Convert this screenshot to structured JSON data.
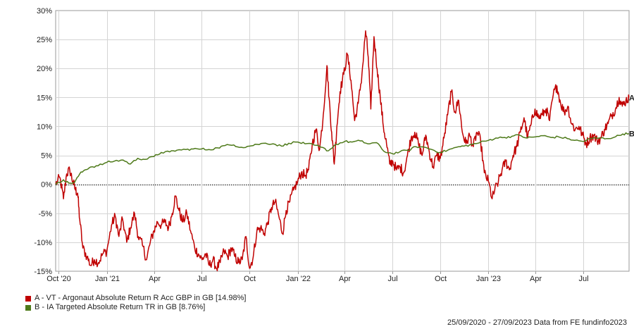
{
  "chart_data": {
    "type": "line",
    "x_start": "2020-09-25",
    "x_end": "2023-09-27",
    "xticks": [
      {
        "date": "2020-10-01",
        "label": "Oct '20"
      },
      {
        "date": "2021-01-01",
        "label": "Jan '21"
      },
      {
        "date": "2021-04-01",
        "label": "Apr"
      },
      {
        "date": "2021-07-01",
        "label": "Jul"
      },
      {
        "date": "2021-10-01",
        "label": "Oct"
      },
      {
        "date": "2022-01-01",
        "label": "Jan '22"
      },
      {
        "date": "2022-04-01",
        "label": "Apr"
      },
      {
        "date": "2022-07-01",
        "label": "Jul"
      },
      {
        "date": "2022-10-01",
        "label": "Oct"
      },
      {
        "date": "2023-01-01",
        "label": "Jan '23"
      },
      {
        "date": "2023-04-01",
        "label": "Apr"
      },
      {
        "date": "2023-07-01",
        "label": "Jul"
      }
    ],
    "ylim": [
      -15,
      30
    ],
    "yticks": [
      -15,
      -10,
      -5,
      0,
      5,
      10,
      15,
      20,
      25,
      30
    ],
    "ytick_labels": [
      "-15%",
      "-10%",
      "-5%",
      "0%",
      "5%",
      "10%",
      "15%",
      "20%",
      "25%",
      "30%"
    ],
    "grid": true,
    "legend_position": "bottom-left",
    "series": [
      {
        "name": "A - VT - Argonaut Absolute Return R Acc GBP in GB [14.98%]",
        "end_label": "A",
        "color": "#c00000",
        "points": [
          [
            "2020-09-25",
            0
          ],
          [
            "2020-10-03",
            1.2
          ],
          [
            "2020-10-10",
            -2.5
          ],
          [
            "2020-10-16",
            1.8
          ],
          [
            "2020-10-22",
            2.5
          ],
          [
            "2020-10-28",
            0.5
          ],
          [
            "2020-11-02",
            -1.0
          ],
          [
            "2020-11-06",
            -1.5
          ],
          [
            "2020-11-10",
            -6.0
          ],
          [
            "2020-11-16",
            -11.0
          ],
          [
            "2020-11-24",
            -12.5
          ],
          [
            "2020-12-01",
            -14.0
          ],
          [
            "2020-12-08",
            -13.0
          ],
          [
            "2020-12-16",
            -13.5
          ],
          [
            "2020-12-24",
            -12.0
          ],
          [
            "2021-01-01",
            -11.5
          ],
          [
            "2021-01-10",
            -7.0
          ],
          [
            "2021-01-17",
            -5.5
          ],
          [
            "2021-01-24",
            -9.0
          ],
          [
            "2021-01-31",
            -6.0
          ],
          [
            "2021-02-08",
            -10.0
          ],
          [
            "2021-02-15",
            -7.5
          ],
          [
            "2021-02-23",
            -5.0
          ],
          [
            "2021-03-02",
            -9.0
          ],
          [
            "2021-03-10",
            -10.5
          ],
          [
            "2021-03-18",
            -13.0
          ],
          [
            "2021-03-25",
            -10.0
          ],
          [
            "2021-04-01",
            -8.0
          ],
          [
            "2021-04-08",
            -6.5
          ],
          [
            "2021-04-15",
            -7.0
          ],
          [
            "2021-04-22",
            -6.5
          ],
          [
            "2021-04-29",
            -7.5
          ],
          [
            "2021-05-06",
            -5.0
          ],
          [
            "2021-05-12",
            -2.0
          ],
          [
            "2021-05-19",
            -4.5
          ],
          [
            "2021-05-26",
            -6.5
          ],
          [
            "2021-06-03",
            -5.0
          ],
          [
            "2021-06-10",
            -8.0
          ],
          [
            "2021-06-18",
            -11.0
          ],
          [
            "2021-06-25",
            -12.0
          ],
          [
            "2021-07-02",
            -13.0
          ],
          [
            "2021-07-09",
            -12.0
          ],
          [
            "2021-07-16",
            -14.0
          ],
          [
            "2021-07-23",
            -13.0
          ],
          [
            "2021-07-30",
            -14.5
          ],
          [
            "2021-08-06",
            -13.5
          ],
          [
            "2021-08-13",
            -11.5
          ],
          [
            "2021-08-20",
            -12.5
          ],
          [
            "2021-08-27",
            -11.0
          ],
          [
            "2021-09-03",
            -12.5
          ],
          [
            "2021-09-10",
            -13.5
          ],
          [
            "2021-09-17",
            -13.0
          ],
          [
            "2021-09-24",
            -9.0
          ],
          [
            "2021-10-01",
            -14.5
          ],
          [
            "2021-10-08",
            -12.5
          ],
          [
            "2021-10-15",
            -8.0
          ],
          [
            "2021-10-22",
            -7.5
          ],
          [
            "2021-10-29",
            -8.5
          ],
          [
            "2021-11-05",
            -6.5
          ],
          [
            "2021-11-12",
            -4.0
          ],
          [
            "2021-11-19",
            -3.0
          ],
          [
            "2021-11-26",
            -5.5
          ],
          [
            "2021-12-03",
            -8.5
          ],
          [
            "2021-12-10",
            -4.5
          ],
          [
            "2021-12-17",
            -3.0
          ],
          [
            "2021-12-24",
            -1.0
          ],
          [
            "2022-01-01",
            0.5
          ],
          [
            "2022-01-08",
            2.0
          ],
          [
            "2022-01-15",
            1.5
          ],
          [
            "2022-01-22",
            2.5
          ],
          [
            "2022-01-29",
            7.0
          ],
          [
            "2022-02-05",
            9.5
          ],
          [
            "2022-02-12",
            6.0
          ],
          [
            "2022-02-19",
            12.0
          ],
          [
            "2022-02-26",
            20.5
          ],
          [
            "2022-03-02",
            15.0
          ],
          [
            "2022-03-07",
            9.0
          ],
          [
            "2022-03-12",
            3.5
          ],
          [
            "2022-03-17",
            10.0
          ],
          [
            "2022-03-23",
            16.0
          ],
          [
            "2022-03-30",
            19.0
          ],
          [
            "2022-04-06",
            22.5
          ],
          [
            "2022-04-13",
            18.0
          ],
          [
            "2022-04-20",
            11.0
          ],
          [
            "2022-04-27",
            14.0
          ],
          [
            "2022-05-04",
            19.0
          ],
          [
            "2022-05-11",
            26.5
          ],
          [
            "2022-05-16",
            22.0
          ],
          [
            "2022-05-21",
            13.0
          ],
          [
            "2022-05-27",
            25.5
          ],
          [
            "2022-06-02",
            20.0
          ],
          [
            "2022-06-08",
            15.0
          ],
          [
            "2022-06-14",
            10.0
          ],
          [
            "2022-06-20",
            7.0
          ],
          [
            "2022-06-26",
            3.5
          ],
          [
            "2022-07-02",
            4.0
          ],
          [
            "2022-07-09",
            2.5
          ],
          [
            "2022-07-16",
            3.0
          ],
          [
            "2022-07-23",
            2.0
          ],
          [
            "2022-07-30",
            5.0
          ],
          [
            "2022-08-06",
            8.0
          ],
          [
            "2022-08-13",
            9.0
          ],
          [
            "2022-08-20",
            7.0
          ],
          [
            "2022-08-27",
            5.0
          ],
          [
            "2022-09-03",
            8.5
          ],
          [
            "2022-09-10",
            5.5
          ],
          [
            "2022-09-17",
            3.0
          ],
          [
            "2022-09-24",
            5.0
          ],
          [
            "2022-10-01",
            4.5
          ],
          [
            "2022-10-08",
            8.0
          ],
          [
            "2022-10-15",
            12.0
          ],
          [
            "2022-10-22",
            16.0
          ],
          [
            "2022-10-29",
            12.5
          ],
          [
            "2022-11-05",
            14.5
          ],
          [
            "2022-11-12",
            9.0
          ],
          [
            "2022-11-19",
            7.0
          ],
          [
            "2022-11-26",
            8.5
          ],
          [
            "2022-12-03",
            6.5
          ],
          [
            "2022-12-10",
            9.0
          ],
          [
            "2022-12-17",
            7.5
          ],
          [
            "2022-12-24",
            2.0
          ],
          [
            "2023-01-01",
            0.5
          ],
          [
            "2023-01-08",
            -2.5
          ],
          [
            "2023-01-13",
            -1.0
          ],
          [
            "2023-01-20",
            0.5
          ],
          [
            "2023-01-27",
            2.5
          ],
          [
            "2023-02-03",
            4.0
          ],
          [
            "2023-02-10",
            2.5
          ],
          [
            "2023-02-17",
            5.0
          ],
          [
            "2023-02-24",
            6.5
          ],
          [
            "2023-03-03",
            9.0
          ],
          [
            "2023-03-10",
            11.5
          ],
          [
            "2023-03-17",
            8.0
          ],
          [
            "2023-03-24",
            10.5
          ],
          [
            "2023-03-31",
            13.0
          ],
          [
            "2023-04-07",
            11.5
          ],
          [
            "2023-04-14",
            12.0
          ],
          [
            "2023-04-21",
            13.0
          ],
          [
            "2023-04-28",
            11.0
          ],
          [
            "2023-05-05",
            15.5
          ],
          [
            "2023-05-12",
            17.0
          ],
          [
            "2023-05-19",
            14.0
          ],
          [
            "2023-05-26",
            12.5
          ],
          [
            "2023-06-02",
            13.5
          ],
          [
            "2023-06-09",
            10.5
          ],
          [
            "2023-06-16",
            9.5
          ],
          [
            "2023-06-23",
            10.0
          ],
          [
            "2023-06-30",
            8.5
          ],
          [
            "2023-07-07",
            7.0
          ],
          [
            "2023-07-14",
            8.0
          ],
          [
            "2023-07-21",
            8.5
          ],
          [
            "2023-07-28",
            7.5
          ],
          [
            "2023-08-04",
            8.0
          ],
          [
            "2023-08-11",
            9.5
          ],
          [
            "2023-08-18",
            10.5
          ],
          [
            "2023-08-25",
            12.0
          ],
          [
            "2023-09-01",
            13.0
          ],
          [
            "2023-09-08",
            15.0
          ],
          [
            "2023-09-14",
            13.5
          ],
          [
            "2023-09-21",
            14.5
          ],
          [
            "2023-09-27",
            14.98
          ]
        ]
      },
      {
        "name": "B - IA Targeted Absolute Return TR in GB [8.76%]",
        "end_label": "B",
        "color": "#4e7a1a",
        "points": [
          [
            "2020-09-25",
            0
          ],
          [
            "2020-10-10",
            0.8
          ],
          [
            "2020-10-20",
            0.2
          ],
          [
            "2020-10-31",
            0.3
          ],
          [
            "2020-11-10",
            1.8
          ],
          [
            "2020-11-20",
            2.5
          ],
          [
            "2020-12-01",
            3.0
          ],
          [
            "2020-12-15",
            3.2
          ],
          [
            "2021-01-01",
            3.8
          ],
          [
            "2021-01-15",
            4.0
          ],
          [
            "2021-02-01",
            4.2
          ],
          [
            "2021-02-15",
            3.5
          ],
          [
            "2021-03-01",
            4.5
          ],
          [
            "2021-03-15",
            4.3
          ],
          [
            "2021-04-01",
            4.8
          ],
          [
            "2021-04-15",
            5.5
          ],
          [
            "2021-05-01",
            5.6
          ],
          [
            "2021-05-15",
            5.9
          ],
          [
            "2021-06-01",
            6.0
          ],
          [
            "2021-06-15",
            6.1
          ],
          [
            "2021-07-01",
            6.1
          ],
          [
            "2021-07-15",
            6.0
          ],
          [
            "2021-08-01",
            6.3
          ],
          [
            "2021-08-15",
            6.7
          ],
          [
            "2021-09-01",
            6.8
          ],
          [
            "2021-09-15",
            6.4
          ],
          [
            "2021-10-01",
            6.6
          ],
          [
            "2021-10-15",
            6.9
          ],
          [
            "2021-11-01",
            7.1
          ],
          [
            "2021-11-15",
            7.0
          ],
          [
            "2021-12-01",
            6.6
          ],
          [
            "2021-12-15",
            7.1
          ],
          [
            "2022-01-01",
            7.3
          ],
          [
            "2022-01-15",
            7.0
          ],
          [
            "2022-02-01",
            6.8
          ],
          [
            "2022-02-15",
            6.4
          ],
          [
            "2022-03-01",
            5.8
          ],
          [
            "2022-03-15",
            6.9
          ],
          [
            "2022-04-01",
            7.4
          ],
          [
            "2022-04-15",
            7.3
          ],
          [
            "2022-05-01",
            7.5
          ],
          [
            "2022-05-15",
            7.0
          ],
          [
            "2022-06-01",
            7.2
          ],
          [
            "2022-06-15",
            5.7
          ],
          [
            "2022-07-01",
            5.3
          ],
          [
            "2022-07-15",
            5.6
          ],
          [
            "2022-08-01",
            5.9
          ],
          [
            "2022-08-15",
            6.5
          ],
          [
            "2022-09-01",
            6.4
          ],
          [
            "2022-09-15",
            6.0
          ],
          [
            "2022-10-01",
            5.5
          ],
          [
            "2022-10-15",
            5.9
          ],
          [
            "2022-11-01",
            6.4
          ],
          [
            "2022-11-15",
            6.6
          ],
          [
            "2022-12-01",
            6.9
          ],
          [
            "2022-12-15",
            7.2
          ],
          [
            "2023-01-01",
            7.6
          ],
          [
            "2023-01-15",
            8.0
          ],
          [
            "2023-02-01",
            8.1
          ],
          [
            "2023-02-15",
            8.3
          ],
          [
            "2023-03-01",
            8.5
          ],
          [
            "2023-03-15",
            8.0
          ],
          [
            "2023-04-01",
            8.2
          ],
          [
            "2023-04-15",
            8.4
          ],
          [
            "2023-05-01",
            8.1
          ],
          [
            "2023-05-15",
            8.2
          ],
          [
            "2023-06-01",
            7.9
          ],
          [
            "2023-06-15",
            7.6
          ],
          [
            "2023-07-01",
            7.4
          ],
          [
            "2023-07-15",
            7.9
          ],
          [
            "2023-08-01",
            8.0
          ],
          [
            "2023-08-15",
            7.9
          ],
          [
            "2023-09-01",
            8.2
          ],
          [
            "2023-09-15",
            8.7
          ],
          [
            "2023-09-27",
            8.76
          ]
        ]
      }
    ]
  },
  "footer": {
    "text": "25/09/2020 - 27/09/2023 Data from FE fundinfo2023"
  }
}
